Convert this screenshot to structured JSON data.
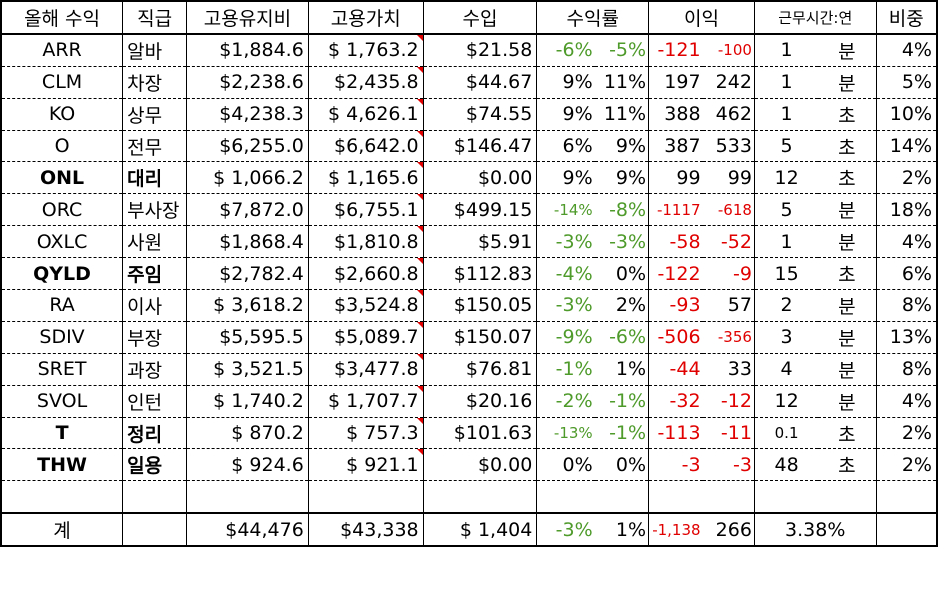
{
  "headers": [
    "올해 수익",
    "직급",
    "고용유지비",
    "고용가치",
    "수입",
    "수익률",
    "이익",
    "근무시간:연",
    "비중"
  ],
  "rows": [
    {
      "ticker": "ARR",
      "rank": "알바",
      "cost": "$1,884.6",
      "value": "$ 1,763.2",
      "income": "$21.58",
      "r1": "-6%",
      "r2": "-5%",
      "p1": "-121",
      "p2": "-100",
      "hours": "1",
      "unit": "분",
      "weight": "4%",
      "bold": false
    },
    {
      "ticker": "CLM",
      "rank": "차장",
      "cost": "$2,238.6",
      "value": "$2,435.8",
      "income": "$44.67",
      "r1": "9%",
      "r2": "11%",
      "p1": "197",
      "p2": "242",
      "hours": "1",
      "unit": "분",
      "weight": "5%",
      "bold": false
    },
    {
      "ticker": "KO",
      "rank": "상무",
      "cost": "$4,238.3",
      "value": "$ 4,626.1",
      "income": "$74.55",
      "r1": "9%",
      "r2": "11%",
      "p1": "388",
      "p2": "462",
      "hours": "1",
      "unit": "초",
      "weight": "10%",
      "bold": false
    },
    {
      "ticker": "O",
      "rank": "전무",
      "cost": "$6,255.0",
      "value": "$6,642.0",
      "income": "$146.47",
      "r1": "6%",
      "r2": "9%",
      "p1": "387",
      "p2": "533",
      "hours": "5",
      "unit": "초",
      "weight": "14%",
      "bold": false
    },
    {
      "ticker": "ONL",
      "rank": "대리",
      "cost": "$ 1,066.2",
      "value": "$ 1,165.6",
      "income": "$0.00",
      "r1": "9%",
      "r2": "9%",
      "p1": "99",
      "p2": "99",
      "hours": "12",
      "unit": "초",
      "weight": "2%",
      "bold": true
    },
    {
      "ticker": "ORC",
      "rank": "부사장",
      "cost": "$7,872.0",
      "value": "$6,755.1",
      "income": "$499.15",
      "r1": "-14%",
      "r2": "-8%",
      "p1": "-1117",
      "p2": "-618",
      "hours": "5",
      "unit": "분",
      "weight": "18%",
      "bold": false
    },
    {
      "ticker": "OXLC",
      "rank": "사원",
      "cost": "$1,868.4",
      "value": "$1,810.8",
      "income": "$5.91",
      "r1": "-3%",
      "r2": "-3%",
      "p1": "-58",
      "p2": "-52",
      "hours": "1",
      "unit": "분",
      "weight": "4%",
      "bold": false
    },
    {
      "ticker": "QYLD",
      "rank": "주임",
      "cost": "$2,782.4",
      "value": "$2,660.8",
      "income": "$112.83",
      "r1": "-4%",
      "r2": "0%",
      "p1": "-122",
      "p2": "-9",
      "hours": "15",
      "unit": "초",
      "weight": "6%",
      "bold": true
    },
    {
      "ticker": "RA",
      "rank": "이사",
      "cost": "$ 3,618.2",
      "value": "$3,524.8",
      "income": "$150.05",
      "r1": "-3%",
      "r2": "2%",
      "p1": "-93",
      "p2": "57",
      "hours": "2",
      "unit": "분",
      "weight": "8%",
      "bold": false
    },
    {
      "ticker": "SDIV",
      "rank": "부장",
      "cost": "$5,595.5",
      "value": "$5,089.7",
      "income": "$150.07",
      "r1": "-9%",
      "r2": "-6%",
      "p1": "-506",
      "p2": "-356",
      "hours": "3",
      "unit": "분",
      "weight": "13%",
      "bold": false
    },
    {
      "ticker": "SRET",
      "rank": "과장",
      "cost": "$ 3,521.5",
      "value": "$3,477.8",
      "income": "$76.81",
      "r1": "-1%",
      "r2": "1%",
      "p1": "-44",
      "p2": "33",
      "hours": "4",
      "unit": "분",
      "weight": "8%",
      "bold": false
    },
    {
      "ticker": "SVOL",
      "rank": "인턴",
      "cost": "$ 1,740.2",
      "value": "$ 1,707.7",
      "income": "$20.16",
      "r1": "-2%",
      "r2": "-1%",
      "p1": "-32",
      "p2": "-12",
      "hours": "12",
      "unit": "분",
      "weight": "4%",
      "bold": false
    },
    {
      "ticker": "T",
      "rank": "정리",
      "cost": "$  870.2",
      "value": "$   757.3",
      "income": "$101.63",
      "r1": "-13%",
      "r2": "-1%",
      "p1": "-113",
      "p2": "-11",
      "hours": "0.1",
      "unit": "초",
      "weight": "2%",
      "bold": true
    },
    {
      "ticker": "THW",
      "rank": "일용",
      "cost": "$   924.6",
      "value": "$   921.1",
      "income": "$0.00",
      "r1": "0%",
      "r2": "0%",
      "p1": "-3",
      "p2": "-3",
      "hours": "48",
      "unit": "초",
      "weight": "2%",
      "bold": true
    }
  ],
  "total": {
    "label": "계",
    "cost": "$44,476",
    "value": "$43,338",
    "income": "$ 1,404",
    "r1": "-3%",
    "r2": "1%",
    "p1": "-1,138",
    "p2": "266",
    "ratio": "3.38%"
  },
  "colors": {
    "positive": "#4e9a2a",
    "negative": "#e00000"
  }
}
